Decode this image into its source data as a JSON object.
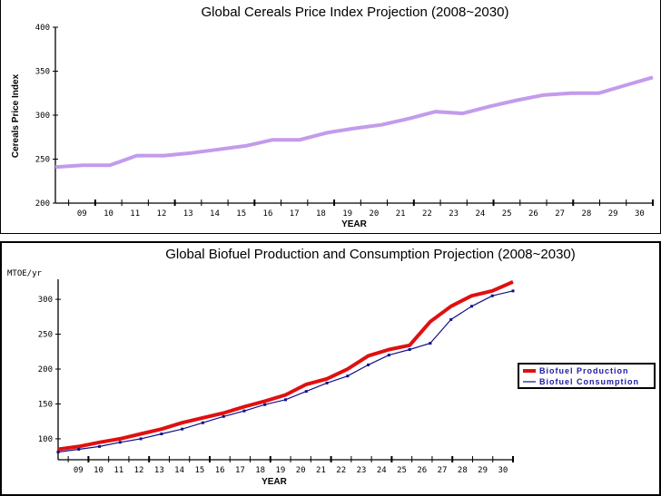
{
  "chart_data": [
    {
      "type": "line",
      "title": "Global Cereals Price Index Projection (2008~2030)",
      "xlabel": "YEAR",
      "ylabel": "Cereals Price Index",
      "ylim": [
        200,
        400
      ],
      "yticks": [
        "400",
        "350",
        "300",
        "250",
        "200"
      ],
      "ytick_values": [
        400,
        350,
        300,
        250,
        200
      ],
      "categories": [
        "09",
        "10",
        "11",
        "12",
        "13",
        "14",
        "15",
        "16",
        "17",
        "18",
        "19",
        "20",
        "21",
        "22",
        "23",
        "24",
        "25",
        "26",
        "27",
        "28",
        "29",
        "30"
      ],
      "x": [
        2008,
        2009,
        2010,
        2011,
        2012,
        2013,
        2014,
        2015,
        2016,
        2017,
        2018,
        2019,
        2020,
        2021,
        2022,
        2023,
        2024,
        2025,
        2026,
        2027,
        2028,
        2029,
        2030
      ],
      "grid": false,
      "legend": "none",
      "series": [
        {
          "name": "Cereals Price Index",
          "color": "#c39bec",
          "values": [
            241,
            243,
            243,
            254,
            254,
            257,
            261,
            265,
            272,
            272,
            280,
            285,
            289,
            296,
            304,
            302,
            310,
            317,
            323,
            325,
            325,
            334,
            343
          ]
        }
      ]
    },
    {
      "type": "line",
      "title": "Global Biofuel Production and Consumption Projection (2008~2030)",
      "xlabel": "YEAR",
      "ylabel": "MTOE/yr",
      "ylim": [
        70,
        330
      ],
      "yticks": [
        "300",
        "250",
        "200",
        "150",
        "100"
      ],
      "ytick_values": [
        300,
        250,
        200,
        150,
        100
      ],
      "categories": [
        "09",
        "10",
        "11",
        "12",
        "13",
        "14",
        "15",
        "16",
        "17",
        "18",
        "19",
        "20",
        "21",
        "22",
        "23",
        "24",
        "25",
        "26",
        "27",
        "28",
        "29",
        "30"
      ],
      "x": [
        2008,
        2009,
        2010,
        2011,
        2012,
        2013,
        2014,
        2015,
        2016,
        2017,
        2018,
        2019,
        2020,
        2021,
        2022,
        2023,
        2024,
        2025,
        2026,
        2027,
        2028,
        2029,
        2030
      ],
      "grid": false,
      "legend": "right",
      "series": [
        {
          "name": "Biofuel Production",
          "color": "#e01010",
          "values": [
            85,
            89,
            95,
            100,
            107,
            114,
            123,
            130,
            137,
            146,
            154,
            163,
            178,
            186,
            200,
            219,
            228,
            234,
            268,
            290,
            305,
            312,
            325
          ]
        },
        {
          "name": "Biofuel Consumption",
          "color": "#10108a",
          "values": [
            81,
            85,
            89,
            95,
            100,
            107,
            114,
            123,
            132,
            140,
            149,
            156,
            168,
            180,
            190,
            206,
            220,
            228,
            237,
            271,
            290,
            305,
            312
          ]
        }
      ]
    }
  ]
}
